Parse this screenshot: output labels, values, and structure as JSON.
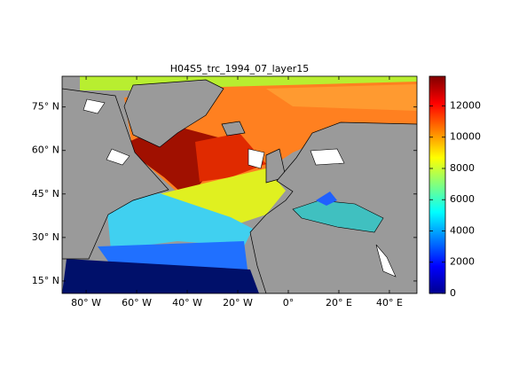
{
  "chart_data": {
    "type": "map",
    "title": "H04S5_trc_1994_07_layer15",
    "xticks": [
      {
        "value": -80,
        "label": "80° W"
      },
      {
        "value": -60,
        "label": "60° W"
      },
      {
        "value": -40,
        "label": "40° W"
      },
      {
        "value": -20,
        "label": "20° W"
      },
      {
        "value": 0,
        "label": "0°"
      },
      {
        "value": 20,
        "label": "20° E"
      },
      {
        "value": 40,
        "label": "40° E"
      }
    ],
    "yticks": [
      {
        "value": 15,
        "label": "15° N"
      },
      {
        "value": 30,
        "label": "30° N"
      },
      {
        "value": 45,
        "label": "45° N"
      },
      {
        "value": 60,
        "label": "60° N"
      },
      {
        "value": 75,
        "label": "75° N"
      }
    ],
    "xlim": [
      -89.5,
      50.9
    ],
    "ylim": [
      10.7,
      85.6
    ],
    "colorbar": {
      "lim": [
        0,
        13900
      ],
      "ticks": [
        0,
        2000,
        4000,
        6000,
        8000,
        10000,
        12000
      ]
    }
  }
}
